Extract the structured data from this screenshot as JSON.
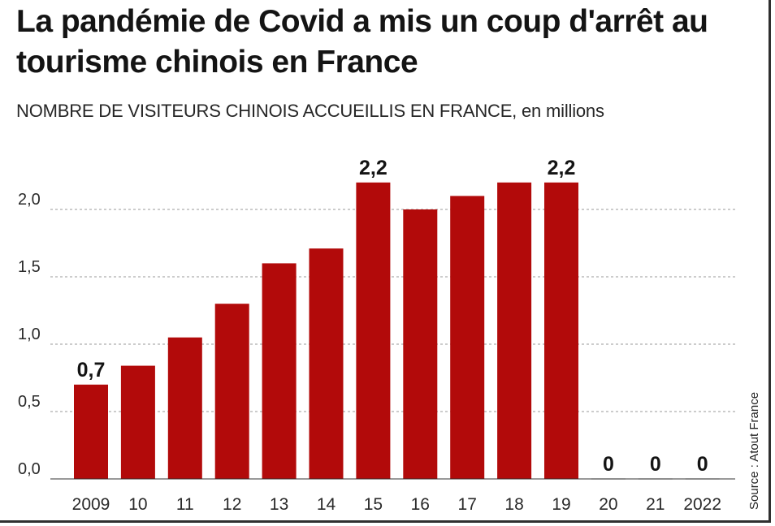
{
  "title": "La pandémie de Covid a mis un coup d'arrêt au tourisme chinois en France",
  "subtitle": "NOMBRE DE VISITEURS CHINOIS ACCUEILLIS EN FRANCE,",
  "subtitle_unit": "en millions",
  "source": "Source : Atout France",
  "colors": {
    "bar": "#b20a0a",
    "grid": "#9a9a9a",
    "axis": "#333333"
  },
  "chart_data": {
    "type": "bar",
    "categories": [
      "2009",
      "10",
      "11",
      "12",
      "13",
      "14",
      "15",
      "16",
      "17",
      "18",
      "19",
      "20",
      "21",
      "2022"
    ],
    "values": [
      0.7,
      0.84,
      1.05,
      1.3,
      1.6,
      1.71,
      2.2,
      2.0,
      2.1,
      2.2,
      2.2,
      0,
      0,
      0
    ],
    "data_labels": [
      "0,7",
      "",
      "",
      "",
      "",
      "",
      "2,2",
      "",
      "",
      "",
      "2,2",
      "0",
      "0",
      "0"
    ],
    "yticks": [
      "0,0",
      "0,5",
      "1,0",
      "1,5",
      "2,0"
    ],
    "ytick_values": [
      0,
      0.5,
      1.0,
      1.5,
      2.0
    ],
    "ylim": [
      0,
      2.2
    ],
    "grid": true
  }
}
